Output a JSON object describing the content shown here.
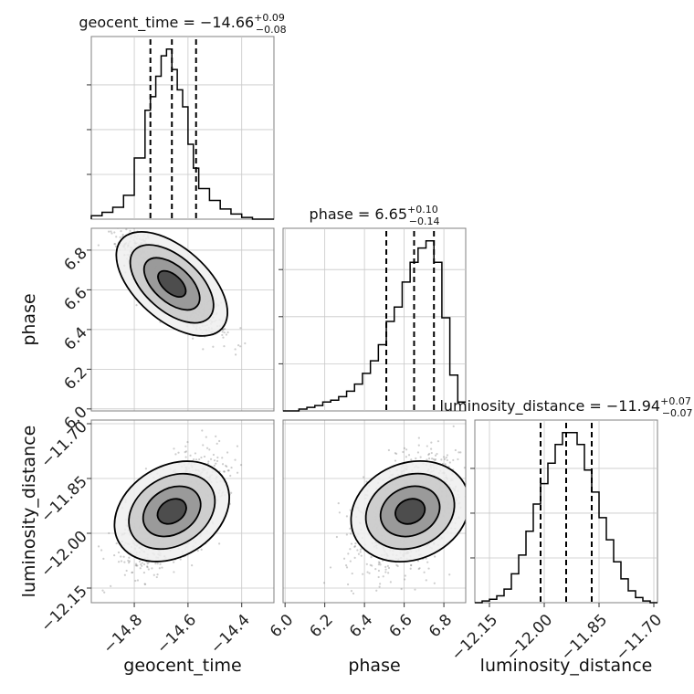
{
  "chart_data": {
    "type": "corner",
    "parameters": [
      "geocent_time",
      "phase",
      "luminosity_distance"
    ],
    "titles": {
      "geocent_time": {
        "name": "geocent_time",
        "median": "−14.66",
        "plus": "+0.09",
        "minus": "−0.08"
      },
      "phase": {
        "name": "phase",
        "median": "6.65",
        "plus": "+0.10",
        "minus": "−0.14"
      },
      "luminosity_distance": {
        "name": "luminosity_distance",
        "median": "−11.94",
        "plus": "+0.07",
        "minus": "−0.07"
      }
    },
    "ranges": {
      "geocent_time": [
        -14.96,
        -14.28
      ],
      "phase": [
        5.99,
        6.91
      ],
      "luminosity_distance": [
        -12.19,
        -11.69
      ]
    },
    "ticks": {
      "geocent_time": [
        -14.8,
        -14.6,
        -14.4
      ],
      "phase": [
        6.0,
        6.2,
        6.4,
        6.6,
        6.8
      ],
      "luminosity_distance": [
        -12.15,
        -12.0,
        -11.85,
        -11.7
      ]
    },
    "tick_labels": {
      "geocent_time": [
        "−14.8",
        "−14.6",
        "−14.4"
      ],
      "phase": [
        "6.0",
        "6.2",
        "6.4",
        "6.6",
        "6.8"
      ],
      "luminosity_distance": [
        "−12.15",
        "−12.00",
        "−11.85",
        "−11.70"
      ]
    },
    "quantiles": {
      "geocent_time": [
        -14.74,
        -14.66,
        -14.57
      ],
      "phase": [
        6.51,
        6.65,
        6.75
      ],
      "luminosity_distance": [
        -12.01,
        -11.94,
        -11.87
      ]
    },
    "histograms": {
      "geocent_time": {
        "edges": [
          -14.96,
          -14.92,
          -14.88,
          -14.84,
          -14.8,
          -14.76,
          -14.74,
          -14.72,
          -14.7,
          -14.68,
          -14.66,
          -14.64,
          -14.62,
          -14.6,
          -14.58,
          -14.56,
          -14.52,
          -14.48,
          -14.44,
          -14.4,
          -14.36,
          -14.32,
          -14.28
        ],
        "counts": [
          2,
          4,
          7,
          14,
          36,
          64,
          72,
          84,
          96,
          100,
          88,
          76,
          66,
          44,
          30,
          18,
          11,
          6,
          3,
          1,
          0,
          0
        ]
      },
      "phase": {
        "edges": [
          5.99,
          6.03,
          6.07,
          6.11,
          6.15,
          6.19,
          6.23,
          6.27,
          6.31,
          6.35,
          6.39,
          6.43,
          6.47,
          6.51,
          6.55,
          6.59,
          6.63,
          6.67,
          6.71,
          6.75,
          6.79,
          6.83,
          6.87,
          6.91
        ],
        "counts": [
          0,
          0,
          1,
          2,
          3,
          5,
          6,
          8,
          11,
          15,
          21,
          28,
          37,
          50,
          58,
          72,
          83,
          91,
          95,
          83,
          52,
          20,
          5
        ]
      },
      "luminosity_distance": {
        "edges": [
          -12.19,
          -12.17,
          -12.15,
          -12.13,
          -12.11,
          -12.09,
          -12.07,
          -12.05,
          -12.03,
          -12.01,
          -11.99,
          -11.97,
          -11.95,
          -11.93,
          -11.91,
          -11.89,
          -11.87,
          -11.85,
          -11.83,
          -11.81,
          -11.79,
          -11.77,
          -11.75,
          -11.73,
          -11.71,
          -11.69
        ],
        "counts": [
          0,
          1,
          2,
          4,
          8,
          17,
          28,
          42,
          58,
          70,
          82,
          93,
          100,
          100,
          93,
          78,
          65,
          50,
          37,
          24,
          14,
          7,
          3,
          1,
          0
        ]
      }
    },
    "joint": {
      "geocent_time|phase": {
        "mean": [
          -14.66,
          6.63
        ],
        "std": [
          0.085,
          0.12
        ],
        "corr": -0.85
      },
      "geocent_time|luminosity_distance": {
        "mean": [
          -14.66,
          -11.94
        ],
        "std": [
          0.085,
          0.07
        ],
        "corr": 0.55
      },
      "phase|luminosity_distance": {
        "mean": [
          6.63,
          -11.94
        ],
        "std": [
          0.12,
          0.07
        ],
        "corr": 0.4
      }
    },
    "colors": {
      "line": "#000000",
      "grid": "#c8c8c8",
      "frame": "#808080",
      "points": "#707070"
    }
  }
}
